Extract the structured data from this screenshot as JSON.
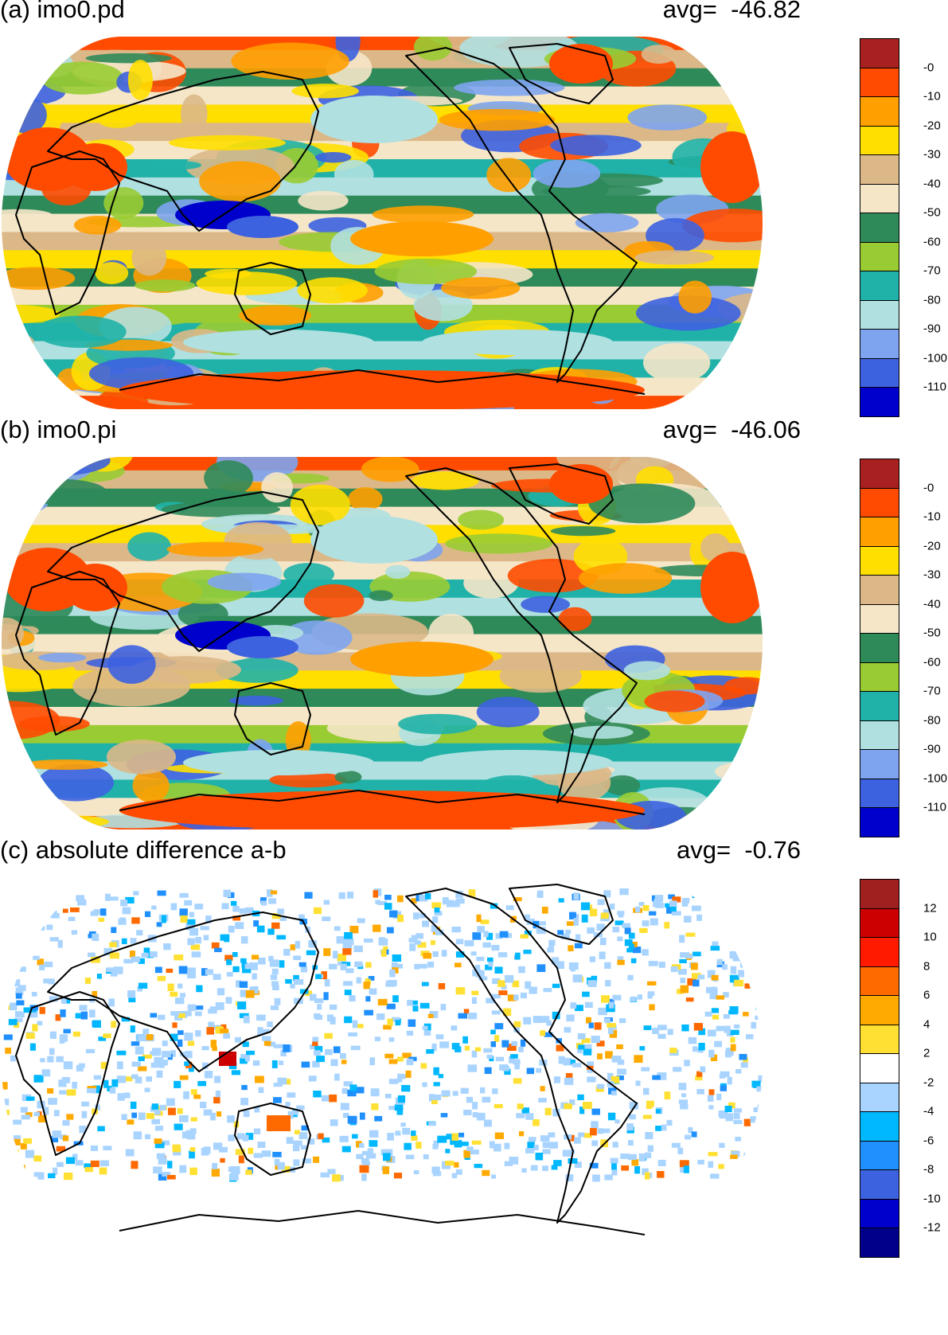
{
  "panels": [
    {
      "title": "(a) imo0.pd",
      "avg_label": "avg=",
      "avg_value": "-46.82",
      "legend": {
        "labels": [
          "-0",
          "-10",
          "-20",
          "-30",
          "-40",
          "-50",
          "-60",
          "-70",
          "-80",
          "-90",
          "-100",
          "-110"
        ],
        "colors": [
          "#a8201f",
          "#ff4b00",
          "#ff9f00",
          "#ffdf00",
          "#dcb888",
          "#f5e6c8",
          "#2f8a5a",
          "#99cc33",
          "#20b2a8",
          "#b0e0e0",
          "#7ea4f0",
          "#3d62e0",
          "#0000cc"
        ]
      }
    },
    {
      "title": "(b) imo0.pi",
      "avg_label": "avg=",
      "avg_value": "-46.06",
      "legend": {
        "labels": [
          "-0",
          "-10",
          "-20",
          "-30",
          "-40",
          "-50",
          "-60",
          "-70",
          "-80",
          "-90",
          "-100",
          "-110"
        ],
        "colors": [
          "#a8201f",
          "#ff4b00",
          "#ff9f00",
          "#ffdf00",
          "#dcb888",
          "#f5e6c8",
          "#2f8a5a",
          "#99cc33",
          "#20b2a8",
          "#b0e0e0",
          "#7ea4f0",
          "#3d62e0",
          "#0000cc"
        ]
      }
    },
    {
      "title": "(c) absolute difference a-b",
      "avg_label": "avg=",
      "avg_value": "-0.76",
      "legend": {
        "labels": [
          "12",
          "10",
          "8",
          "6",
          "4",
          "2",
          "-2",
          "-4",
          "-6",
          "-8",
          "-10",
          "-12"
        ],
        "colors": [
          "#a01f1f",
          "#cc0000",
          "#ff1a00",
          "#ff6a00",
          "#ffaa00",
          "#ffe033",
          "#ffffff",
          "#a8d4ff",
          "#00b8ff",
          "#2090ff",
          "#3d62e0",
          "#0000cc",
          "#00008b"
        ]
      }
    }
  ]
}
